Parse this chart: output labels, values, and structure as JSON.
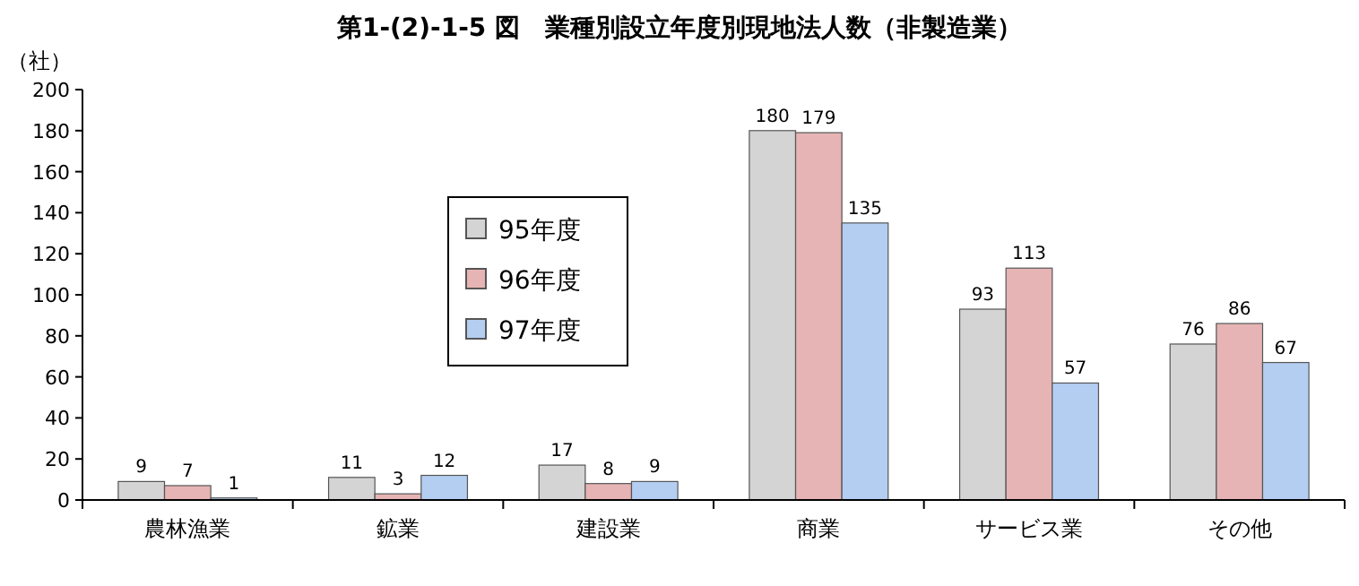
{
  "chart_data": {
    "type": "bar",
    "title": "第1-(2)-1-5 図　業種別設立年度別現地法人数（非製造業）",
    "ylabel": "（社）",
    "categories": [
      "農林漁業",
      "鉱業",
      "建設業",
      "商業",
      "サービス業",
      "その他"
    ],
    "series": [
      {
        "name": "95年度",
        "color": "#d4d4d4",
        "values": [
          9,
          11,
          17,
          180,
          93,
          76
        ]
      },
      {
        "name": "96年度",
        "color": "#e6b4b4",
        "values": [
          7,
          3,
          8,
          179,
          113,
          86
        ]
      },
      {
        "name": "97年度",
        "color": "#b4cef2",
        "values": [
          1,
          12,
          9,
          135,
          57,
          67
        ]
      }
    ],
    "ylim": [
      0,
      200
    ],
    "yticks": [
      0,
      20,
      40,
      60,
      80,
      100,
      120,
      140,
      160,
      180,
      200
    ],
    "data_labels": true,
    "legend": "center",
    "grid": false
  }
}
